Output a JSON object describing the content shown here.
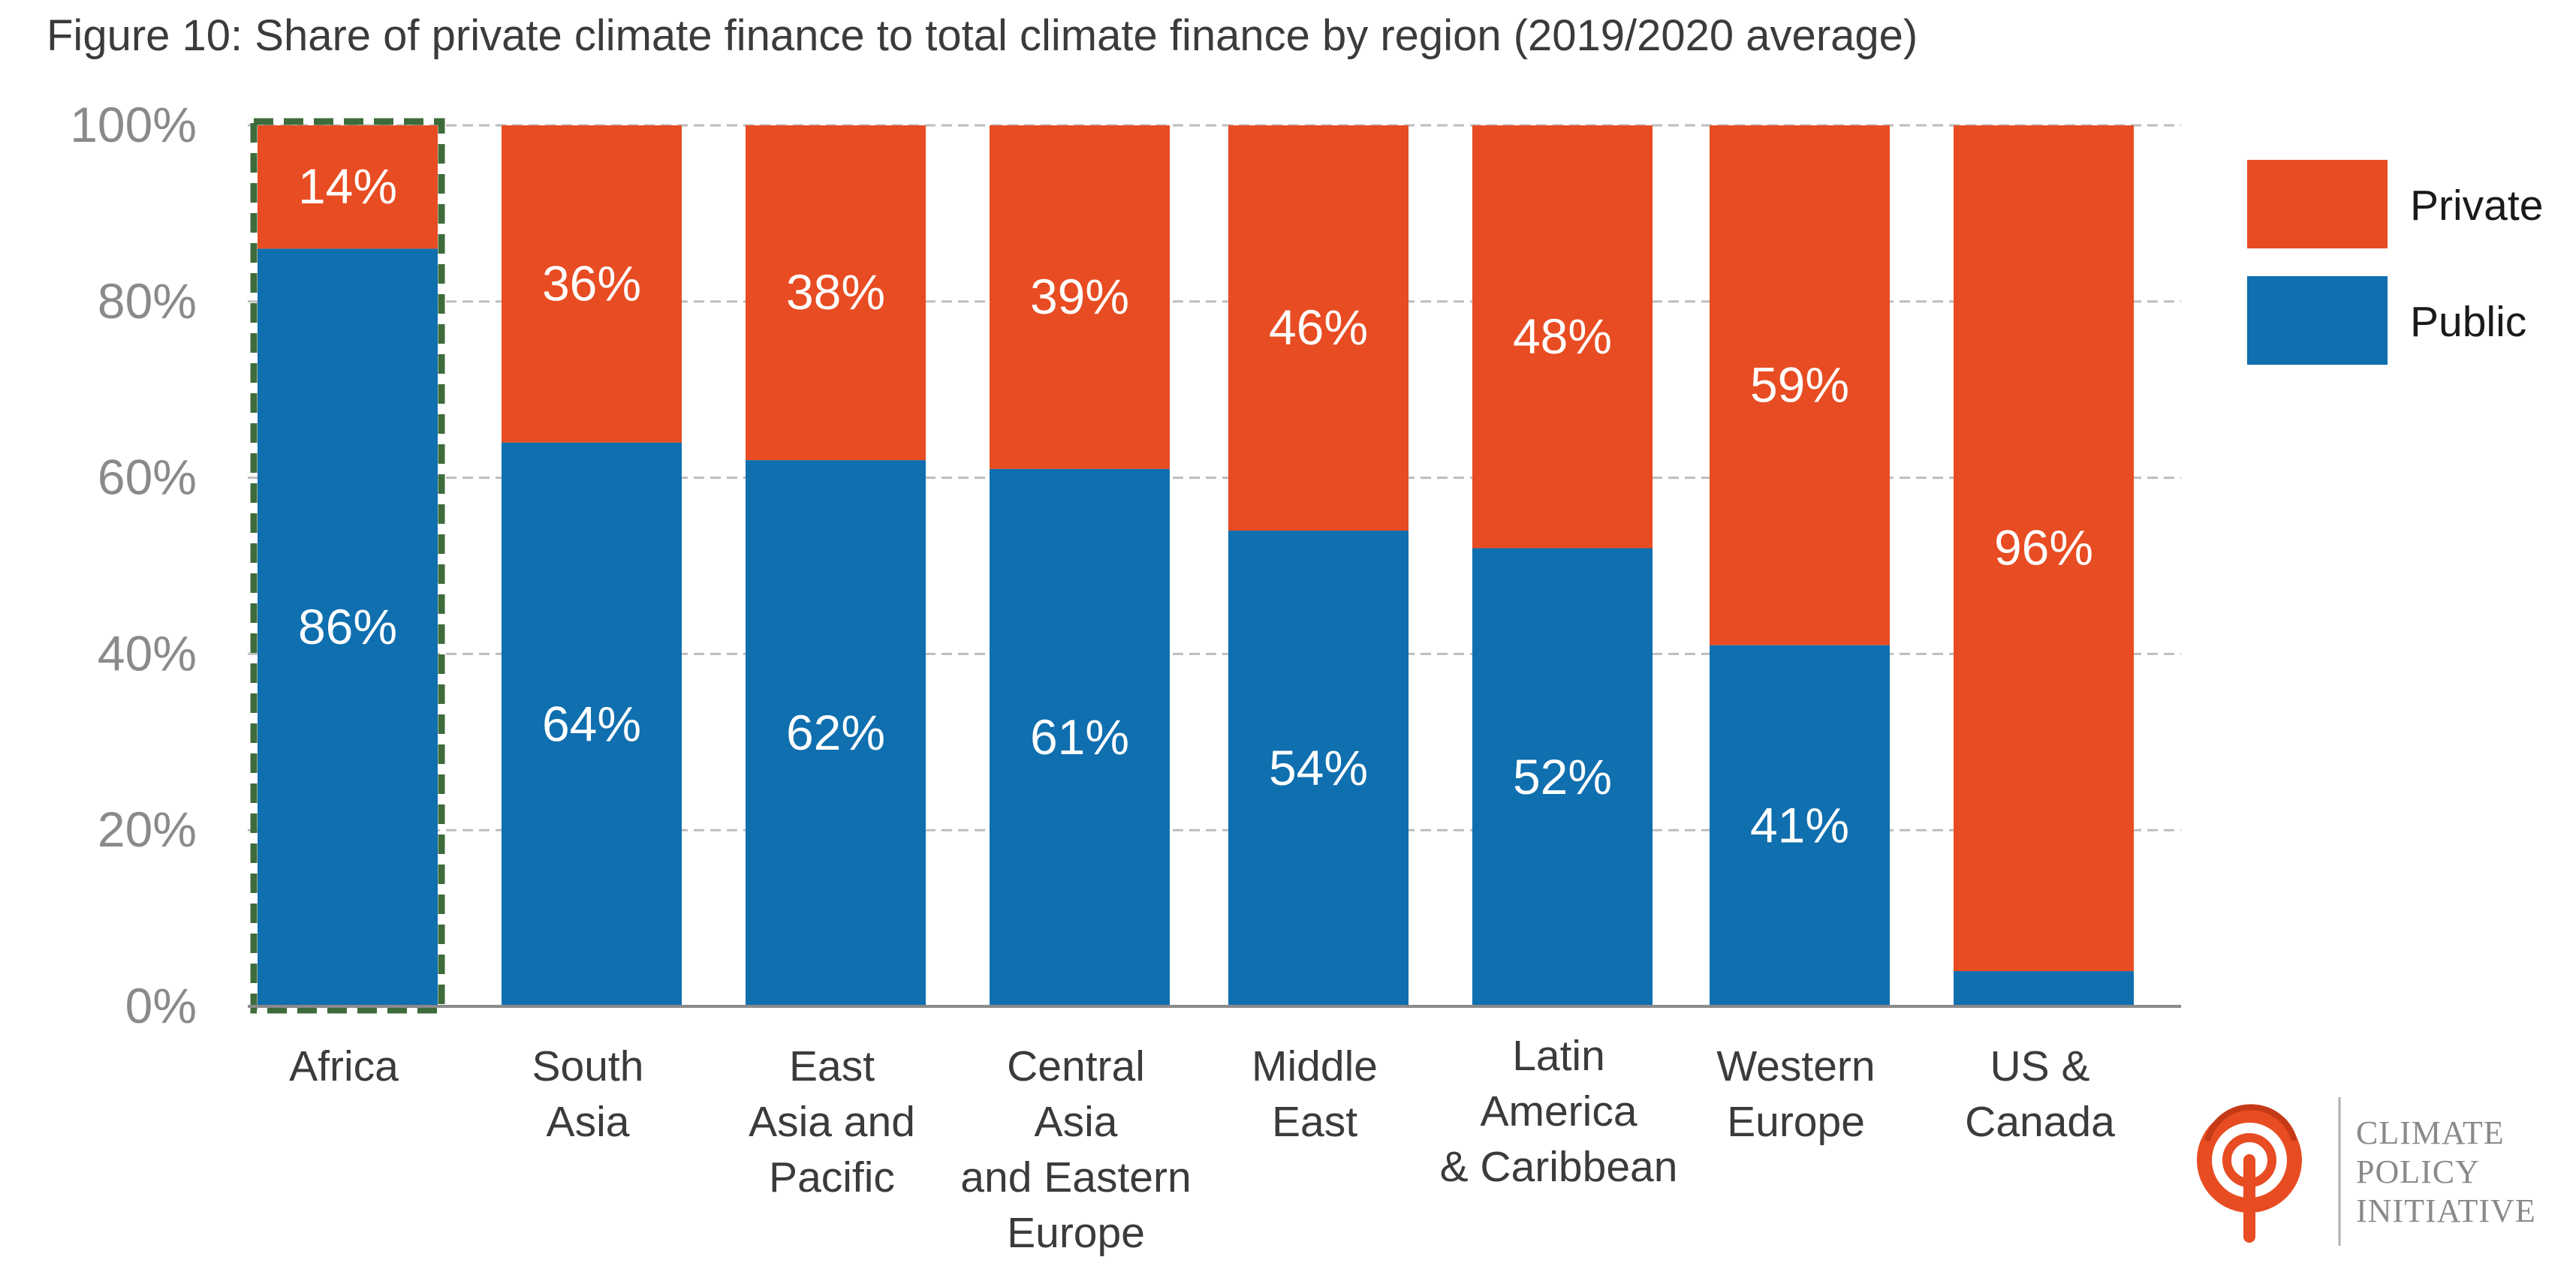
{
  "figure_title": "Figure 10: Share of private climate finance to total climate finance by region (2019/2020 average)",
  "colors": {
    "private": "#e84c22",
    "public": "#0f6faf",
    "highlight_border": "#3e6b3b",
    "grid": "#bdbdbd",
    "axis": "#8a8a8a"
  },
  "chart_data": {
    "type": "bar",
    "stacked": true,
    "orientation": "vertical",
    "title": "",
    "xlabel": "",
    "ylabel": "",
    "ylim": [
      0,
      100
    ],
    "y_ticks": [
      "0%",
      "20%",
      "40%",
      "60%",
      "80%",
      "100%"
    ],
    "categories": [
      [
        "Africa"
      ],
      [
        "South",
        "Asia"
      ],
      [
        "East",
        "Asia and",
        "Pacific"
      ],
      [
        "Central",
        "Asia",
        "and Eastern",
        "Europe"
      ],
      [
        "Middle",
        "East"
      ],
      [
        "Latin",
        "America",
        "& Caribbean"
      ],
      [
        "Western",
        "Europe"
      ],
      [
        "US &",
        "Canada"
      ]
    ],
    "series": [
      {
        "name": "Public",
        "color": "#0f6faf",
        "values": [
          86,
          64,
          62,
          61,
          54,
          52,
          41,
          4
        ],
        "labels": [
          "86%",
          "64%",
          "62%",
          "61%",
          "54%",
          "52%",
          "41%",
          ""
        ]
      },
      {
        "name": "Private",
        "color": "#e84c22",
        "values": [
          14,
          36,
          38,
          39,
          46,
          48,
          59,
          96
        ],
        "labels": [
          "14%",
          "36%",
          "38%",
          "39%",
          "46%",
          "48%",
          "59%",
          "96%"
        ]
      }
    ],
    "highlighted_category": "Africa",
    "grid": true,
    "legend_position": "right"
  },
  "legend": [
    {
      "name": "Private",
      "color": "#e84c22"
    },
    {
      "name": "Public",
      "color": "#0f6faf"
    }
  ],
  "logo": {
    "lines": [
      "CLIMATE",
      "POLICY",
      "INITIATIVE"
    ]
  }
}
